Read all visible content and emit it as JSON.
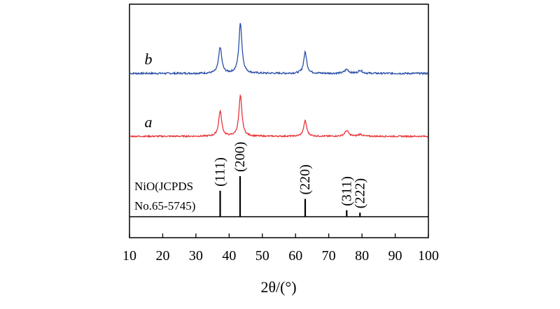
{
  "chart_data": {
    "type": "line",
    "xlabel": "2θ/(°)",
    "xlim": [
      10,
      100
    ],
    "x_ticks": [
      10,
      20,
      30,
      40,
      50,
      60,
      70,
      80,
      90,
      100
    ],
    "grid": false,
    "series": [
      {
        "name": "b",
        "color": "#2a4fa8",
        "baseline_x": [
          10,
          100
        ],
        "peaks": [
          {
            "x": 37.3,
            "height": 0.52
          },
          {
            "x": 43.4,
            "height": 1.0
          },
          {
            "x": 62.9,
            "height": 0.42
          },
          {
            "x": 75.4,
            "height": 0.08
          },
          {
            "x": 79.5,
            "height": 0.06
          }
        ]
      },
      {
        "name": "a",
        "color": "#e8363a",
        "baseline_x": [
          10,
          100
        ],
        "peaks": [
          {
            "x": 37.3,
            "height": 0.62
          },
          {
            "x": 43.4,
            "height": 1.0
          },
          {
            "x": 62.9,
            "height": 0.38
          },
          {
            "x": 75.4,
            "height": 0.14
          },
          {
            "x": 79.5,
            "height": 0.05
          }
        ]
      }
    ],
    "reference": {
      "label_lines": [
        "NiO(JCPDS",
        "No.65-5745)"
      ],
      "lines": [
        {
          "x": 37.3,
          "hkl": "(111)",
          "intensity": 0.64
        },
        {
          "x": 43.3,
          "hkl": "(200)",
          "intensity": 1.0
        },
        {
          "x": 62.9,
          "hkl": "(220)",
          "intensity": 0.44
        },
        {
          "x": 75.4,
          "hkl": "(311)",
          "intensity": 0.16
        },
        {
          "x": 79.4,
          "hkl": "(222)",
          "intensity": 0.1
        }
      ]
    }
  }
}
